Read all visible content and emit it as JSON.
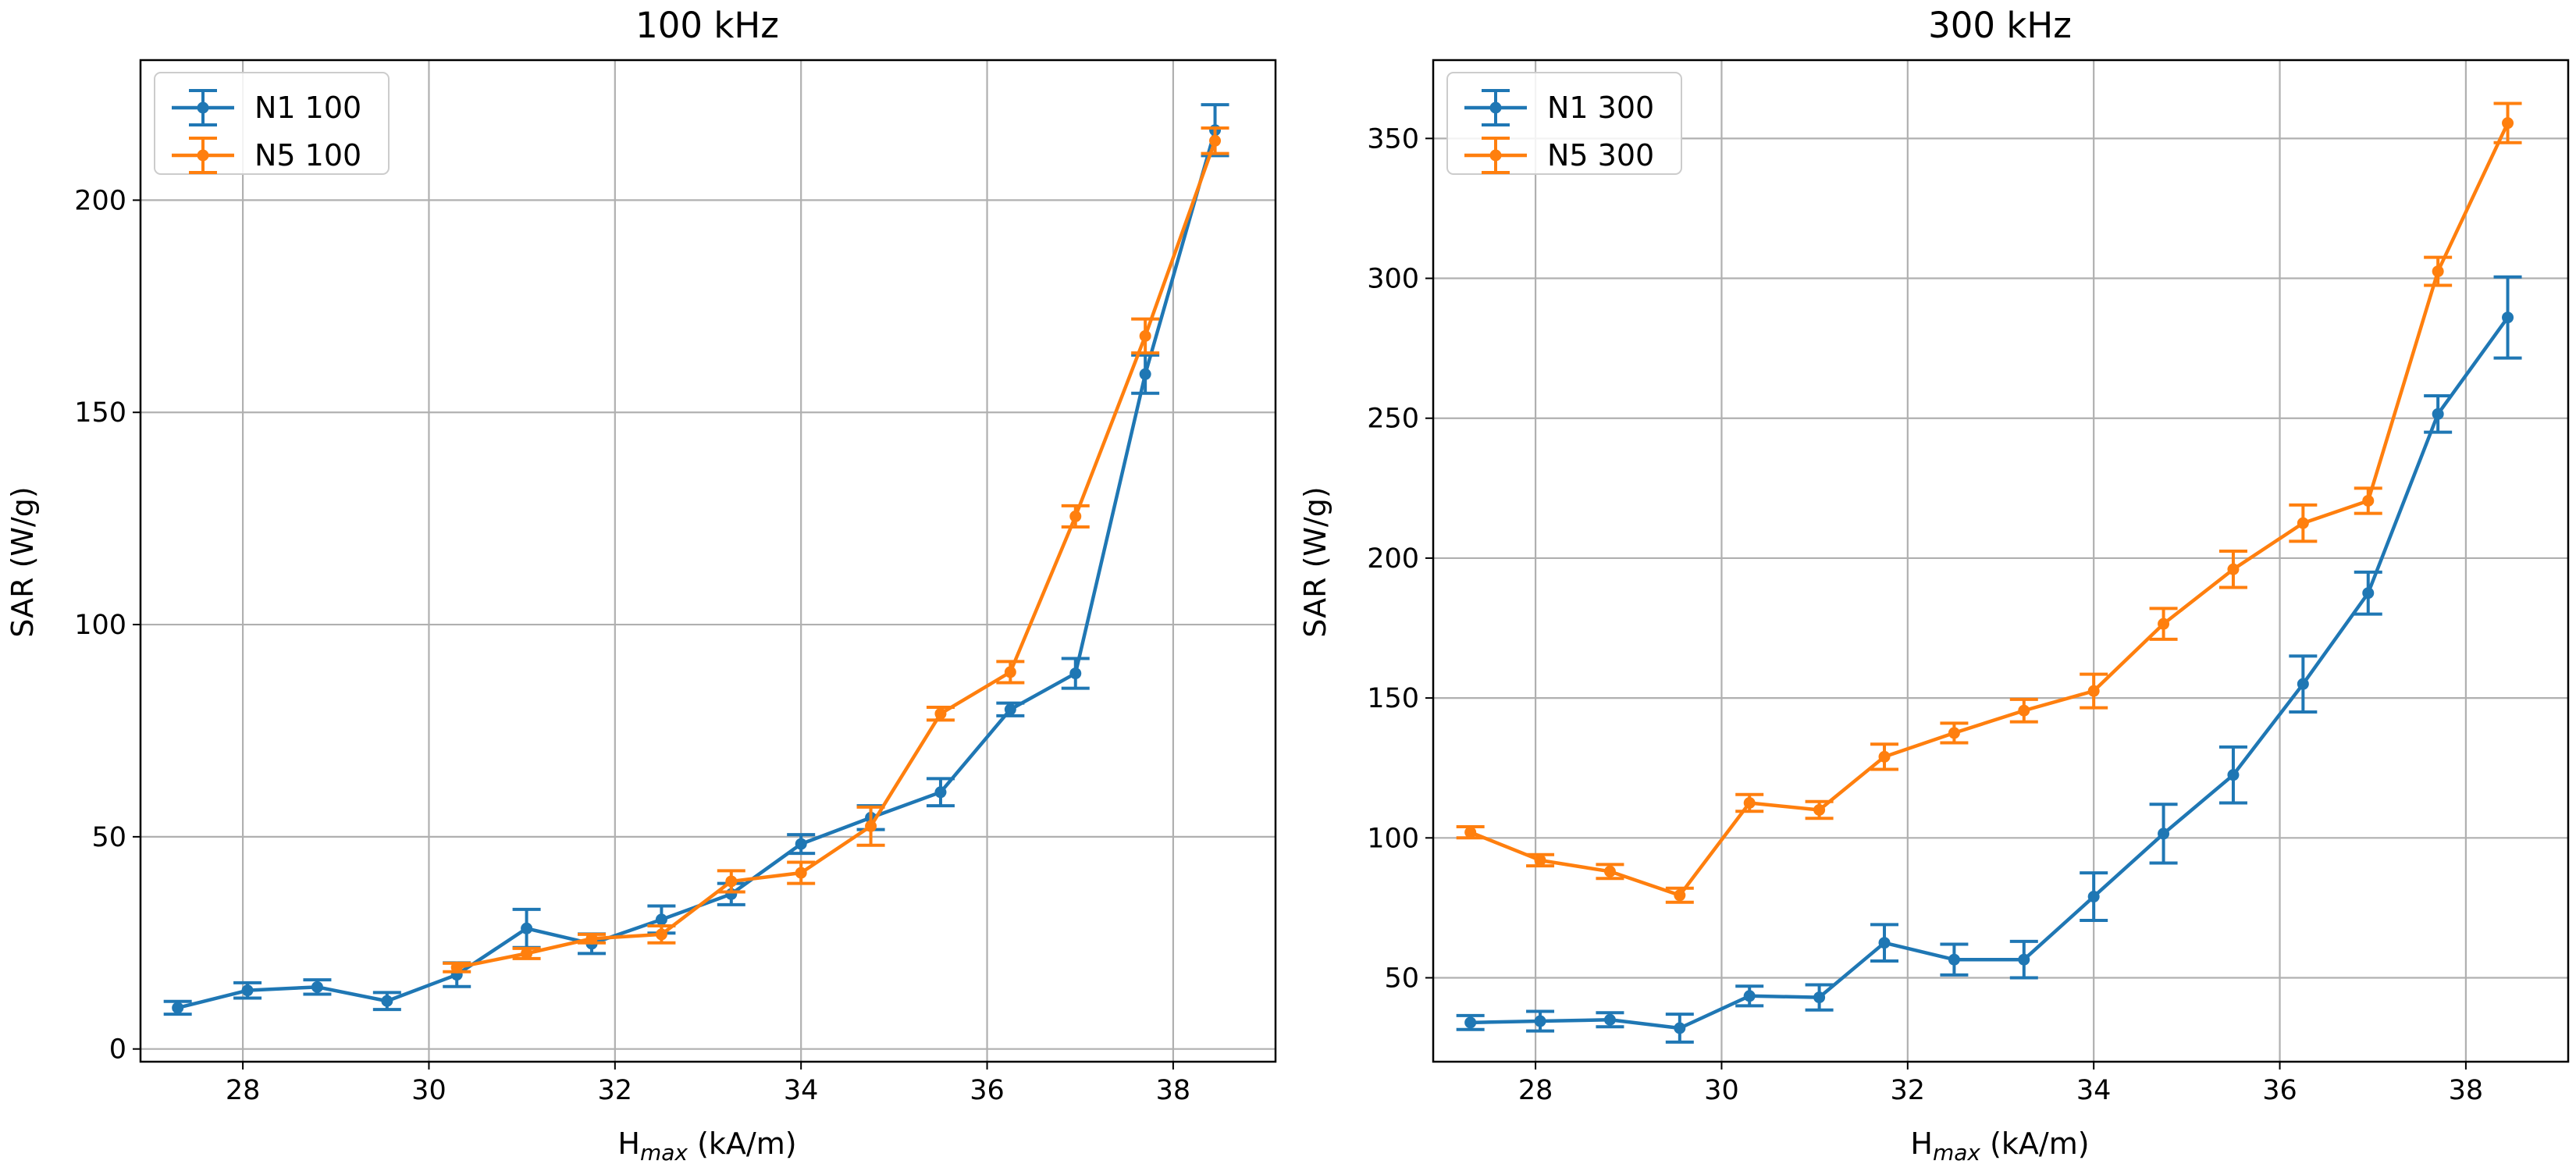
{
  "colors": {
    "n1": "#1f77b4",
    "n5": "#ff7f0e",
    "grid": "#b0b0b0",
    "axis": "#000000"
  },
  "chart_data": [
    {
      "type": "line",
      "title": "100 kHz",
      "xlabel_main": "H",
      "xlabel_sub": "max",
      "xlabel_unit": " (kA/m)",
      "ylabel": "SAR (W/g)",
      "xlim": [
        26.9,
        39.1
      ],
      "ylim": [
        -3,
        233
      ],
      "xticks": [
        28,
        30,
        32,
        34,
        36,
        38
      ],
      "yticks": [
        0,
        50,
        100,
        150,
        200
      ],
      "grid": true,
      "legend_position": "upper-left",
      "series": [
        {
          "name": "N1 100",
          "color": "#1f77b4",
          "points": [
            {
              "x": 27.3,
              "y": 9.7,
              "err": 1.5
            },
            {
              "x": 28.05,
              "y": 13.8,
              "err": 1.8
            },
            {
              "x": 28.8,
              "y": 14.6,
              "err": 1.7
            },
            {
              "x": 29.55,
              "y": 11.3,
              "err": 2.0
            },
            {
              "x": 30.3,
              "y": 17.5,
              "err": 2.8
            },
            {
              "x": 31.05,
              "y": 28.4,
              "err": 4.5
            },
            {
              "x": 31.75,
              "y": 24.8,
              "err": 2.3
            },
            {
              "x": 32.5,
              "y": 30.5,
              "err": 3.2
            },
            {
              "x": 33.25,
              "y": 36.5,
              "err": 2.5
            },
            {
              "x": 34.0,
              "y": 48.3,
              "err": 2.2
            },
            {
              "x": 34.75,
              "y": 54.5,
              "err": 2.8
            },
            {
              "x": 35.5,
              "y": 60.5,
              "err": 3.2
            },
            {
              "x": 36.25,
              "y": 80.0,
              "err": 1.5
            },
            {
              "x": 36.95,
              "y": 88.5,
              "err": 3.5
            },
            {
              "x": 37.7,
              "y": 159.0,
              "err": 4.5
            },
            {
              "x": 38.45,
              "y": 216.5,
              "err": 6.0
            }
          ]
        },
        {
          "name": "N5 100",
          "color": "#ff7f0e",
          "points": [
            {
              "x": 30.3,
              "y": 19.2,
              "err": 1.0
            },
            {
              "x": 31.05,
              "y": 22.5,
              "err": 1.2
            },
            {
              "x": 31.75,
              "y": 26.0,
              "err": 1.0
            },
            {
              "x": 32.5,
              "y": 27.0,
              "err": 2.0
            },
            {
              "x": 33.25,
              "y": 39.5,
              "err": 2.5
            },
            {
              "x": 34.0,
              "y": 41.5,
              "err": 2.5
            },
            {
              "x": 34.75,
              "y": 52.5,
              "err": 4.5
            },
            {
              "x": 35.5,
              "y": 79.0,
              "err": 1.5
            },
            {
              "x": 36.25,
              "y": 88.8,
              "err": 2.5
            },
            {
              "x": 36.95,
              "y": 125.5,
              "err": 2.5
            },
            {
              "x": 37.7,
              "y": 168.0,
              "err": 4.0
            },
            {
              "x": 38.45,
              "y": 214.0,
              "err": 3.0
            }
          ]
        }
      ]
    },
    {
      "type": "line",
      "title": "300 kHz",
      "xlabel_main": "H",
      "xlabel_sub": "max",
      "xlabel_unit": " (kA/m)",
      "ylabel": "SAR (W/g)",
      "xlim": [
        26.9,
        39.1
      ],
      "ylim": [
        20,
        378
      ],
      "xticks": [
        28,
        30,
        32,
        34,
        36,
        38
      ],
      "yticks": [
        50,
        100,
        150,
        200,
        250,
        300,
        350
      ],
      "grid": true,
      "legend_position": "upper-left",
      "series": [
        {
          "name": "N1 300",
          "color": "#1f77b4",
          "points": [
            {
              "x": 27.3,
              "y": 34.0,
              "err": 2.5
            },
            {
              "x": 28.05,
              "y": 34.5,
              "err": 3.5
            },
            {
              "x": 28.8,
              "y": 35.0,
              "err": 2.5
            },
            {
              "x": 29.55,
              "y": 32.0,
              "err": 5.0
            },
            {
              "x": 30.3,
              "y": 43.5,
              "err": 3.5
            },
            {
              "x": 31.05,
              "y": 43.0,
              "err": 4.5
            },
            {
              "x": 31.75,
              "y": 62.5,
              "err": 6.5
            },
            {
              "x": 32.5,
              "y": 56.5,
              "err": 5.5
            },
            {
              "x": 33.25,
              "y": 56.5,
              "err": 6.5
            },
            {
              "x": 34.0,
              "y": 79.0,
              "err": 8.5
            },
            {
              "x": 34.75,
              "y": 101.5,
              "err": 10.5
            },
            {
              "x": 35.5,
              "y": 122.5,
              "err": 10.0
            },
            {
              "x": 36.25,
              "y": 155.0,
              "err": 10.0
            },
            {
              "x": 36.95,
              "y": 187.5,
              "err": 7.5
            },
            {
              "x": 37.7,
              "y": 251.5,
              "err": 6.5
            },
            {
              "x": 38.45,
              "y": 286.0,
              "err": 14.5
            }
          ]
        },
        {
          "name": "N5 300",
          "color": "#ff7f0e",
          "points": [
            {
              "x": 27.3,
              "y": 102.0,
              "err": 2.0
            },
            {
              "x": 28.05,
              "y": 92.0,
              "err": 2.0
            },
            {
              "x": 28.8,
              "y": 88.0,
              "err": 2.5
            },
            {
              "x": 29.55,
              "y": 79.5,
              "err": 2.5
            },
            {
              "x": 30.3,
              "y": 112.5,
              "err": 3.0
            },
            {
              "x": 31.05,
              "y": 110.0,
              "err": 3.0
            },
            {
              "x": 31.75,
              "y": 129.0,
              "err": 4.5
            },
            {
              "x": 32.5,
              "y": 137.5,
              "err": 3.5
            },
            {
              "x": 33.25,
              "y": 145.5,
              "err": 4.0
            },
            {
              "x": 34.0,
              "y": 152.5,
              "err": 6.0
            },
            {
              "x": 34.75,
              "y": 176.5,
              "err": 5.5
            },
            {
              "x": 35.5,
              "y": 196.0,
              "err": 6.5
            },
            {
              "x": 36.25,
              "y": 212.5,
              "err": 6.5
            },
            {
              "x": 36.95,
              "y": 220.5,
              "err": 4.5
            },
            {
              "x": 37.7,
              "y": 302.5,
              "err": 5.0
            },
            {
              "x": 38.45,
              "y": 355.5,
              "err": 7.0
            }
          ]
        }
      ]
    }
  ]
}
